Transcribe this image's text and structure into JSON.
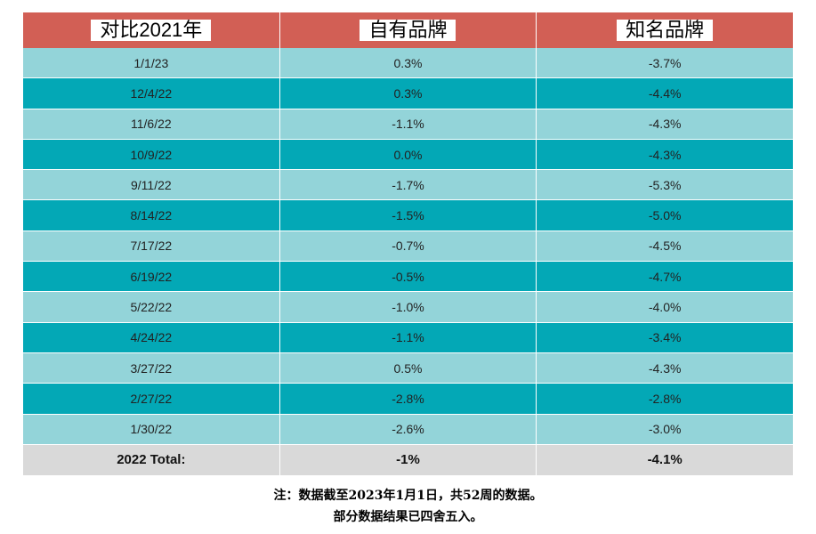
{
  "table": {
    "header": [
      "对比2021年",
      "自有品牌",
      "知名品牌"
    ],
    "rows": [
      [
        "1/1/23",
        "0.3%",
        "-3.7%"
      ],
      [
        "12/4/22",
        "0.3%",
        "-4.4%"
      ],
      [
        "11/6/22",
        "-1.1%",
        "-4.3%"
      ],
      [
        "10/9/22",
        "0.0%",
        "-4.3%"
      ],
      [
        "9/11/22",
        "-1.7%",
        "-5.3%"
      ],
      [
        "8/14/22",
        "-1.5%",
        "-5.0%"
      ],
      [
        "7/17/22",
        "-0.7%",
        "-4.5%"
      ],
      [
        "6/19/22",
        "-0.5%",
        "-4.7%"
      ],
      [
        "5/22/22",
        "-1.0%",
        "-4.0%"
      ],
      [
        "4/24/22",
        "-1.1%",
        "-3.4%"
      ],
      [
        "3/27/22",
        "0.5%",
        "-4.3%"
      ],
      [
        "2/27/22",
        "-2.8%",
        "-2.8%"
      ],
      [
        "1/30/22",
        "-2.6%",
        "-3.0%"
      ]
    ],
    "total": [
      "2022 Total:",
      "-1%",
      "-4.1%"
    ]
  },
  "footnotes": [
    "注：数据截至2023年1月1日，共52周的数据。",
    "部分数据结果已四舍五入。"
  ]
}
